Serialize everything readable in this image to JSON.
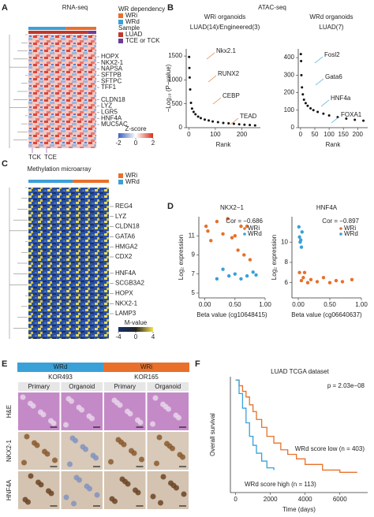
{
  "panel_labels": [
    "A",
    "B",
    "C",
    "D",
    "E",
    "F"
  ],
  "chart_data": [
    {
      "type": "heatmap",
      "title": "RNA-seq",
      "legend_title": "WR dependency",
      "legend": [
        {
          "name": "WRi",
          "color": "#e8702a"
        },
        {
          "name": "WRd",
          "color": "#3aa0d8"
        }
      ],
      "sample_title": "Sample",
      "samples": [
        {
          "name": "LUAD",
          "color": "#c0392b"
        },
        {
          "name": "TCE or TCK",
          "color": "#6a3d9a"
        }
      ],
      "genes": [
        "HOPX",
        "NKX2-1",
        "NAPSA",
        "SFTPB",
        "SFTPC",
        "TFF1",
        "CLDN18",
        "LYZ",
        "LGR5",
        "HNF4A",
        "MUC5AC"
      ],
      "colorbar_title": "Z-score",
      "colorbar_ticks": [
        -2,
        0,
        2
      ],
      "annotations": [
        "TCK",
        "TCE"
      ]
    },
    {
      "type": "scatter",
      "suptitle": "ATAC-seq",
      "title": "WRi organoids",
      "subtitle": "LUAD(14)/Engineered(3)",
      "title_color": "#e8702a",
      "color": "#111111",
      "xlabel": "Rank",
      "ylabel": "−Log₁₀ (P−value)",
      "x": [
        1,
        2,
        3,
        5,
        8,
        12,
        18,
        25,
        35,
        45,
        60,
        75,
        90,
        110,
        130,
        150,
        170,
        190,
        210,
        230,
        250
      ],
      "y": [
        1480,
        1250,
        1050,
        800,
        520,
        400,
        330,
        280,
        230,
        200,
        170,
        150,
        130,
        115,
        100,
        90,
        80,
        70,
        62,
        55,
        48
      ],
      "xlim": [
        -10,
        270
      ],
      "ylim": [
        0,
        1650
      ],
      "xticks": [
        0,
        100,
        200
      ],
      "yticks": [
        0,
        500,
        1000,
        1500
      ],
      "annotations": [
        "Nkx2.1",
        "RUNX2",
        "CEBP",
        "TEAD"
      ]
    },
    {
      "type": "scatter",
      "title": "WRd organoids",
      "subtitle": "LUAD(7)",
      "title_color": "#3aa0d8",
      "color": "#111111",
      "xlabel": "Rank",
      "x": [
        1,
        2,
        3,
        5,
        8,
        12,
        18,
        25,
        35,
        45,
        60,
        80,
        100,
        130,
        160,
        190,
        220
      ],
      "y": [
        420,
        380,
        300,
        230,
        190,
        160,
        140,
        125,
        110,
        100,
        90,
        80,
        70,
        60,
        52,
        45,
        40
      ],
      "xlim": [
        -8,
        235
      ],
      "ylim": [
        0,
        450
      ],
      "xticks": [
        0,
        50,
        100,
        150,
        200
      ],
      "yticks": [
        0,
        100,
        200,
        300,
        400
      ],
      "annotations": [
        "Fosl2",
        "Gata6",
        "HNF4a",
        "FOXA1"
      ]
    },
    {
      "type": "heatmap",
      "title": "Methylation microarray",
      "legend": [
        {
          "name": "WRi",
          "color": "#e8702a"
        },
        {
          "name": "WRd",
          "color": "#3aa0d8"
        }
      ],
      "genes": [
        "REG4",
        "LYZ",
        "CLDN18",
        "GATA6",
        "HMGA2",
        "CDX2",
        "HNF4A",
        "SCGB3A2",
        "HOPX",
        "NKX2-1",
        "LAMP3"
      ],
      "colorbar_title": "M-value",
      "colorbar_ticks": [
        -4,
        0,
        4
      ]
    },
    {
      "type": "scatter",
      "title": "NKX2−1",
      "xlabel": "Beta value (cg10648415)",
      "ylabel": "Log₂ expression",
      "annotations": [
        "Cor = −0.686"
      ],
      "xlim": [
        -0.1,
        1.0
      ],
      "ylim": [
        4.5,
        13
      ],
      "xticks": [
        {
          "value": 0,
          "label": "0.00"
        },
        {
          "value": 0.5,
          "label": "0.50"
        },
        {
          "value": 1,
          "label": "1.00"
        }
      ],
      "yticks": [
        5,
        7,
        9,
        11
      ],
      "series": [
        {
          "name": "WRi",
          "color": "#e8702a",
          "x": [
            0.02,
            0.05,
            0.1,
            0.2,
            0.3,
            0.38,
            0.45,
            0.5,
            0.55,
            0.6,
            0.65,
            0.7,
            0.75
          ],
          "y": [
            12,
            11.5,
            10.5,
            12.5,
            11.2,
            12.8,
            10.8,
            11,
            9.5,
            12,
            9,
            12,
            8.5
          ]
        },
        {
          "name": "WRd",
          "color": "#3aa0d8",
          "x": [
            0.2,
            0.3,
            0.4,
            0.5,
            0.6,
            0.7,
            0.8,
            0.85
          ],
          "y": [
            6.5,
            7.5,
            6.8,
            7,
            6.5,
            6.8,
            7.2,
            6.9
          ]
        }
      ]
    },
    {
      "type": "scatter",
      "title": "HNF4A",
      "xlabel": "Beta value (cg06640637)",
      "ylabel": "Log₂ expression",
      "annotations": [
        "Cor = −0.897"
      ],
      "xlim": [
        -0.1,
        1.0
      ],
      "ylim": [
        4.5,
        12.5
      ],
      "xticks": [
        {
          "value": 0,
          "label": "0.00"
        },
        {
          "value": 0.5,
          "label": "0.50"
        },
        {
          "value": 1,
          "label": "1.00"
        }
      ],
      "yticks": [
        6,
        8,
        10
      ],
      "series": [
        {
          "name": "WRi",
          "color": "#e8702a",
          "x": [
            0.02,
            0.05,
            0.08,
            0.1,
            0.15,
            0.2,
            0.3,
            0.4,
            0.5,
            0.6,
            0.7,
            0.85
          ],
          "y": [
            7,
            6.2,
            6.5,
            7,
            6,
            6.3,
            6.1,
            6.5,
            6.0,
            6.2,
            6.1,
            6.3
          ]
        },
        {
          "name": "WRd",
          "color": "#3aa0d8",
          "x": [
            0.01,
            0.02,
            0.03,
            0.04,
            0.05,
            0.06
          ],
          "y": [
            11.5,
            10.5,
            10,
            10.2,
            9.5,
            11
          ]
        }
      ]
    },
    {
      "type": "image_grid",
      "groups": [
        {
          "name": "WRd",
          "sample": "KOR493",
          "color": "#3aa0d8"
        },
        {
          "name": "WRi",
          "sample": "KOR165",
          "color": "#e8702a"
        }
      ],
      "columns": [
        "Primary",
        "Organoid",
        "Primary",
        "Organoid"
      ],
      "rows": [
        "H&E",
        "NKX2-1",
        "HNF4A"
      ]
    },
    {
      "type": "line",
      "title": "LUAD TCGA dataset",
      "xlabel": "Time (days)",
      "ylabel": "Overall survival",
      "annotations": [
        "p = 2.03e−08"
      ],
      "xlim": [
        -300,
        7600
      ],
      "ylim": [
        0,
        1.03
      ],
      "xticks": [
        0,
        2000,
        4000,
        6000
      ],
      "series": [
        {
          "name": "WRd score low (n = 403)",
          "color": "#e8702a",
          "x": [
            0,
            200,
            400,
            600,
            800,
            1000,
            1200,
            1500,
            1800,
            2200,
            2600,
            3000,
            3500,
            4000,
            5000,
            6000,
            7000
          ],
          "values": [
            1,
            0.95,
            0.9,
            0.85,
            0.78,
            0.72,
            0.65,
            0.58,
            0.5,
            0.44,
            0.38,
            0.34,
            0.3,
            0.25,
            0.2,
            0.18,
            0.18
          ]
        },
        {
          "name": "WRd score high (n = 113)",
          "color": "#3aa0d8",
          "x": [
            0,
            200,
            400,
            600,
            800,
            1000,
            1200,
            1500,
            1800,
            2200
          ],
          "values": [
            1,
            0.88,
            0.75,
            0.62,
            0.5,
            0.42,
            0.35,
            0.28,
            0.22,
            0.2
          ]
        }
      ]
    }
  ]
}
